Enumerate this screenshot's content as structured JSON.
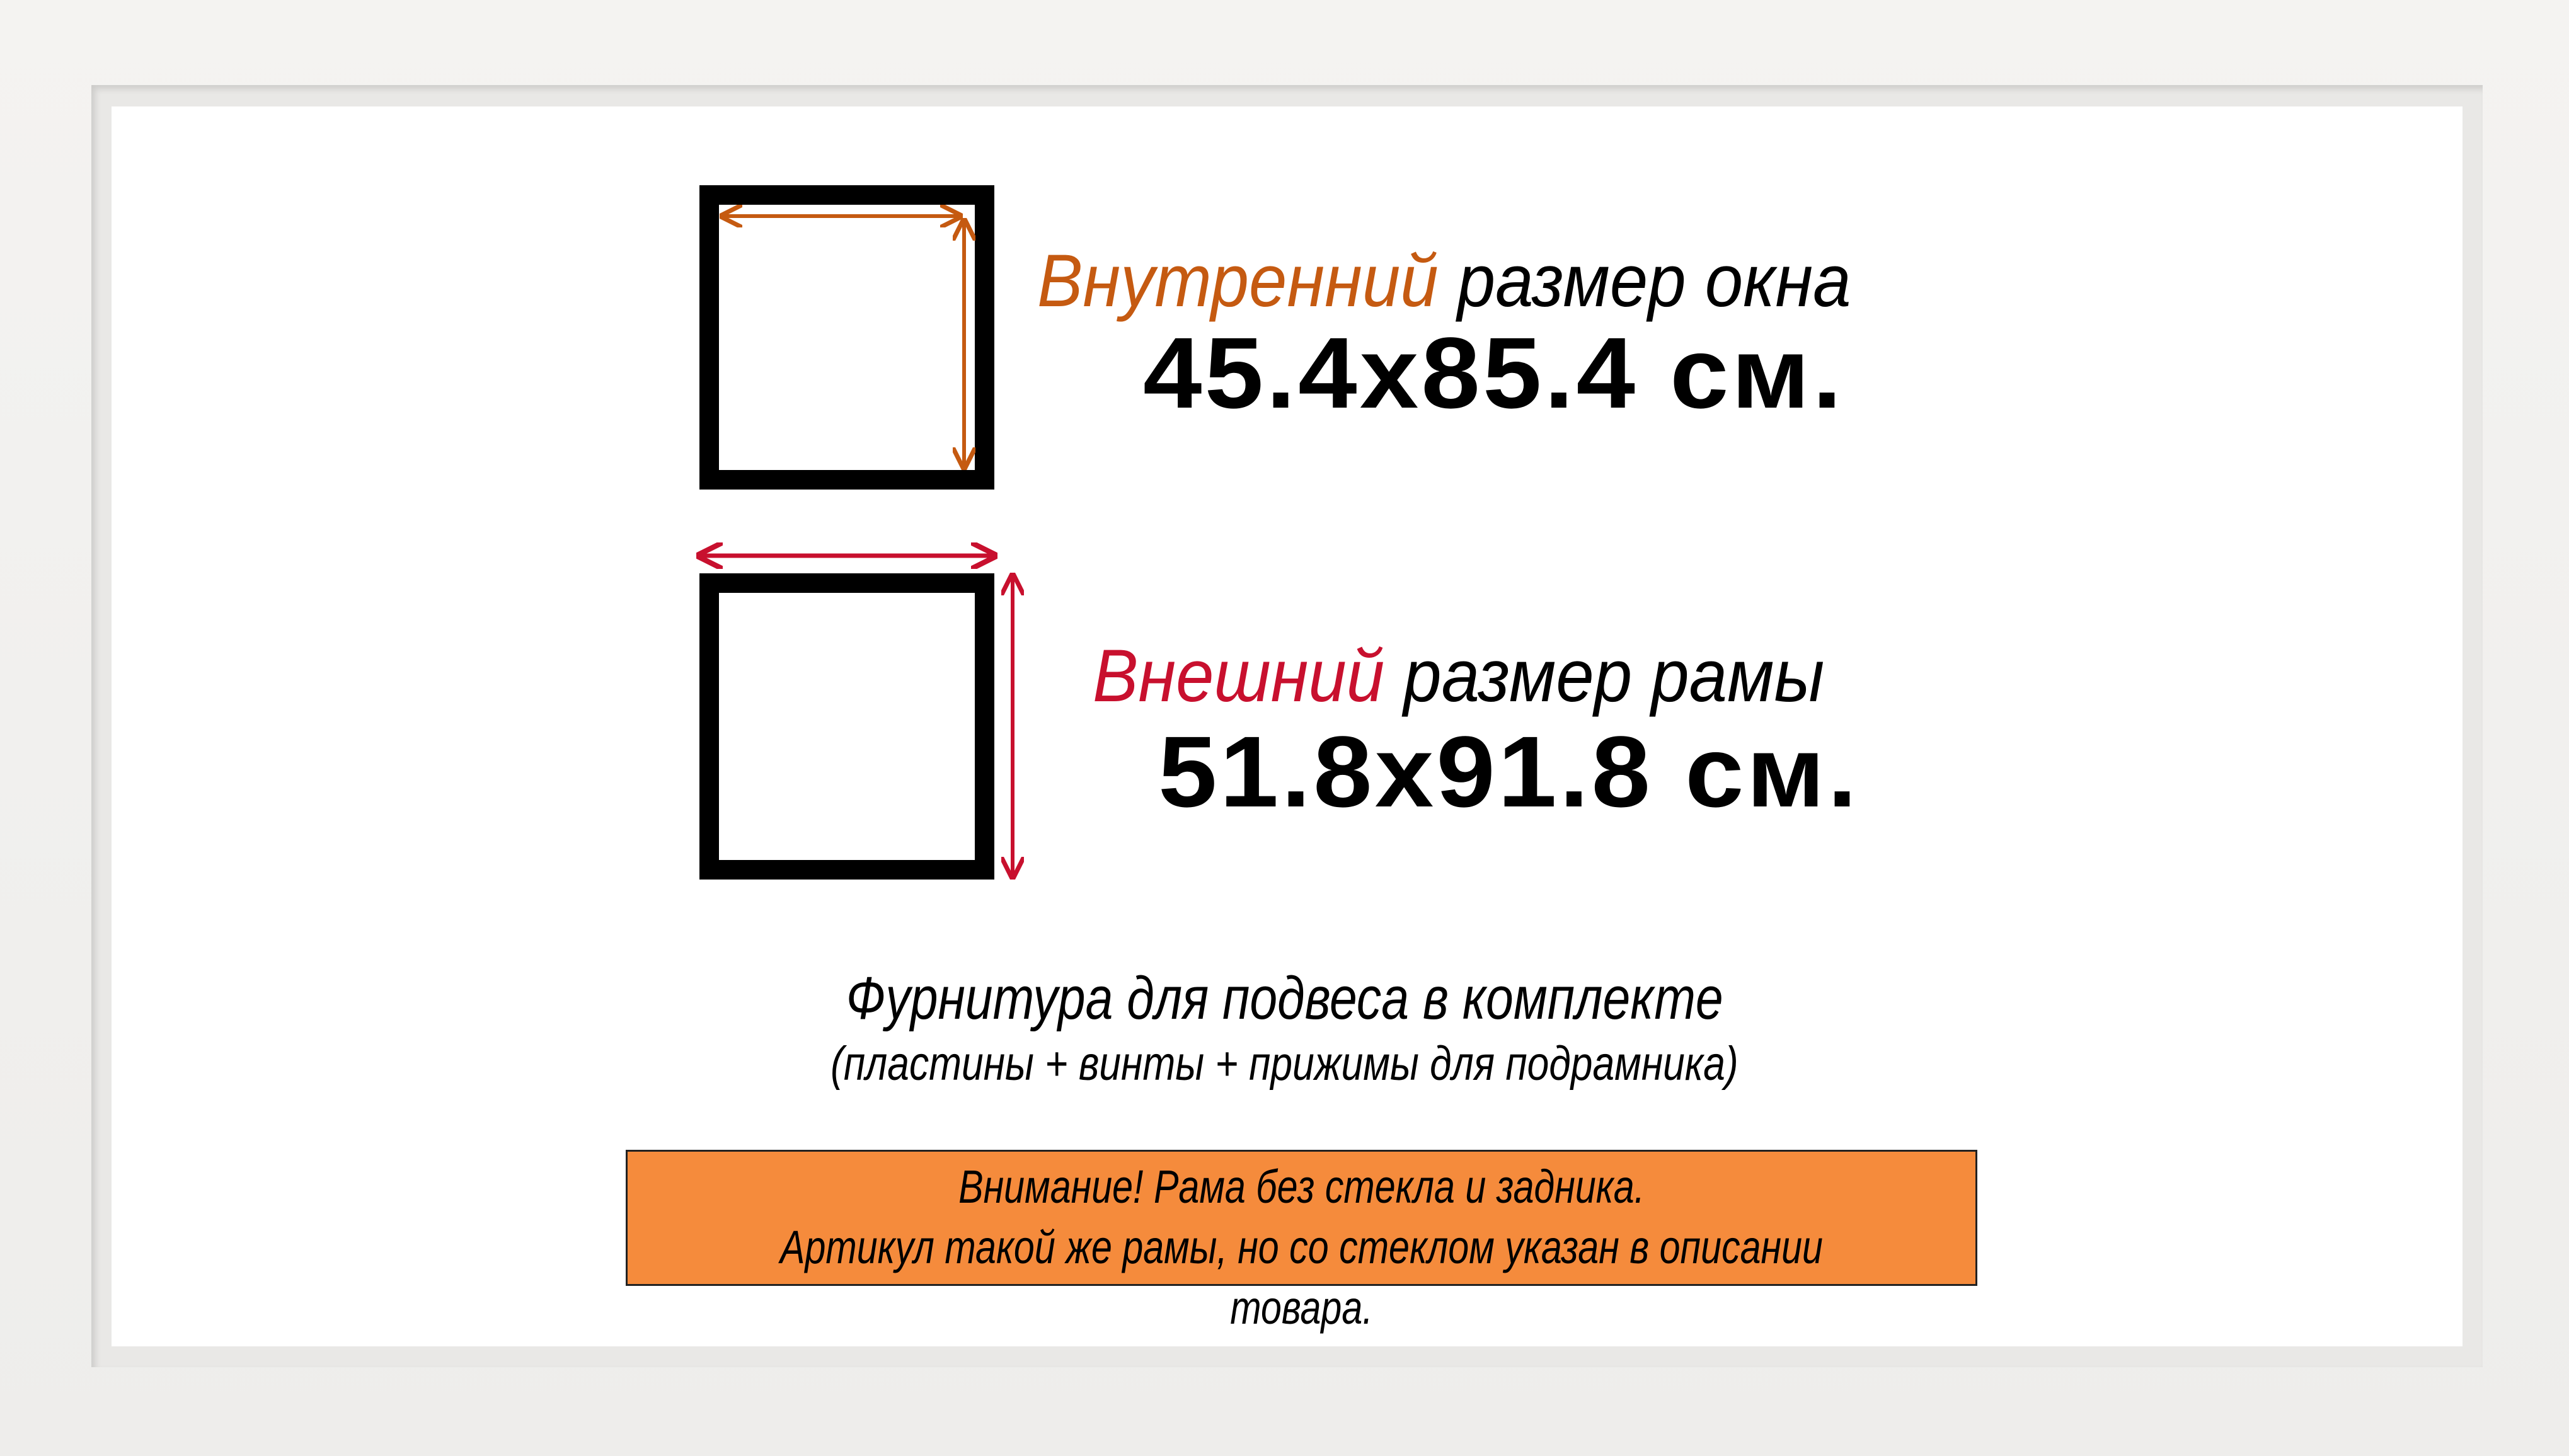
{
  "colors": {
    "inner_accent": "#c55a11",
    "outer_accent": "#c8102e",
    "notice_bg": "#f58b3c",
    "frame": "#f1f0ee"
  },
  "inner_size": {
    "label_accent": "Внутренний",
    "label_rest": "размер окна",
    "value": "45.4x85.4 см."
  },
  "outer_size": {
    "label_accent": "Внешний",
    "label_rest": "размер рамы",
    "value": "51.8x91.8 см."
  },
  "hardware": {
    "line1": "Фурнитура для подвеса в комплекте",
    "line2": "(пластины + винты + прижимы для подрамника)"
  },
  "notice": {
    "line1": "Внимание! Рама без стекла и задника.",
    "line2": "Артикул такой же рамы, но со стеклом указан в описании товара."
  }
}
